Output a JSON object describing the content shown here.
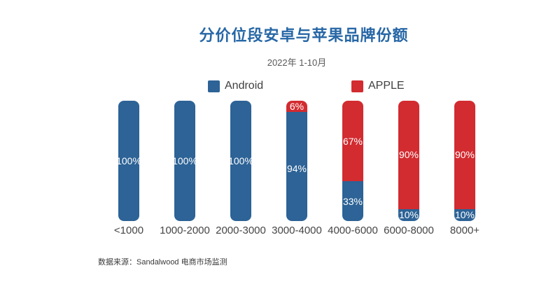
{
  "chart_data": {
    "type": "bar",
    "stacked": true,
    "orientation": "vertical",
    "title": "分价位段安卓与苹果品牌份额",
    "subtitle": "2022年 1-10月",
    "categories": [
      "<1000",
      "1000-2000",
      "2000-3000",
      "3000-4000",
      "4000-6000",
      "6000-8000",
      "8000+"
    ],
    "series": [
      {
        "name": "Android",
        "color": "#2d6396",
        "values": [
          100,
          100,
          100,
          94,
          33,
          10,
          10
        ]
      },
      {
        "name": "APPLE",
        "color": "#d22b30",
        "values": [
          0,
          0,
          0,
          6,
          67,
          90,
          90
        ]
      }
    ],
    "value_label_format": "{v}%",
    "value_label_color": "#ffffff",
    "ylim": [
      0,
      100
    ],
    "grid": false,
    "legend_position": "top-center",
    "xlabel": "",
    "ylabel": ""
  },
  "footer": {
    "source": "数据来源：Sandalwood 电商市场监测"
  },
  "colors": {
    "title": "#2767a6",
    "subtitle": "#595959",
    "axis_label": "#454545",
    "legend_text": "#3f3f3f",
    "android": "#2d6396",
    "apple": "#d22b30"
  }
}
